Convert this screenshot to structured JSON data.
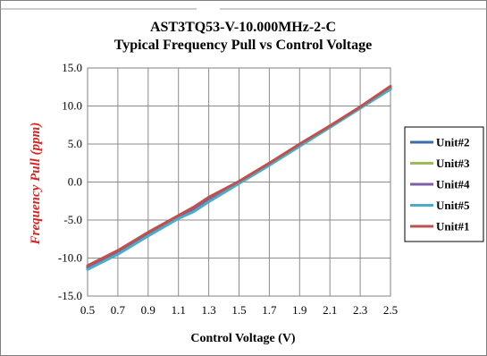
{
  "chart_data": {
    "type": "line",
    "title_line1": "AST3TQ53-V-10.000MHz-2-C",
    "title_line2": "Typical Frequency Pull vs Control Voltage",
    "xlabel": "Control Voltage (V)",
    "ylabel": "Frequency Pull (ppm)",
    "xlim": [
      0.5,
      2.5
    ],
    "ylim": [
      -15,
      15
    ],
    "x_ticks": [
      "0.5",
      "0.7",
      "0.9",
      "1.1",
      "1.3",
      "1.5",
      "1.7",
      "1.9",
      "2.1",
      "2.3",
      "2.5"
    ],
    "y_ticks": [
      "15.0",
      "10.0",
      "5.0",
      "0.0",
      "-5.0",
      "-10.0",
      "-15.0"
    ],
    "grid": true,
    "legend_position": "right",
    "series": [
      {
        "name": "Unit#2",
        "color": "#3a6ea5",
        "x": [
          0.5,
          0.7,
          0.9,
          1.1,
          1.2,
          1.3,
          1.5,
          1.7,
          1.9,
          2.1,
          2.3,
          2.5
        ],
        "y": [
          -11.3,
          -9.3,
          -7.0,
          -4.7,
          -3.8,
          -2.3,
          -0.1,
          2.3,
          4.8,
          7.2,
          9.7,
          12.3
        ]
      },
      {
        "name": "Unit#3",
        "color": "#9bbb59",
        "x": [
          0.5,
          0.7,
          0.9,
          1.1,
          1.2,
          1.3,
          1.5,
          1.7,
          1.9,
          2.1,
          2.3,
          2.5
        ],
        "y": [
          -11.2,
          -9.2,
          -6.9,
          -4.6,
          -3.6,
          -2.2,
          0.0,
          2.4,
          4.9,
          7.3,
          9.8,
          12.5
        ]
      },
      {
        "name": "Unit#4",
        "color": "#7f5fa8",
        "x": [
          0.5,
          0.7,
          0.9,
          1.1,
          1.2,
          1.3,
          1.5,
          1.7,
          1.9,
          2.1,
          2.3,
          2.5
        ],
        "y": [
          -11.2,
          -9.2,
          -6.9,
          -4.6,
          -3.6,
          -2.2,
          0.0,
          2.4,
          4.9,
          7.3,
          9.8,
          12.4
        ]
      },
      {
        "name": "Unit#5",
        "color": "#4bacc6",
        "x": [
          0.5,
          0.7,
          0.9,
          1.1,
          1.2,
          1.3,
          1.5,
          1.7,
          1.9,
          2.1,
          2.3,
          2.5
        ],
        "y": [
          -11.5,
          -9.5,
          -7.1,
          -4.8,
          -3.9,
          -2.6,
          -0.2,
          2.2,
          4.7,
          7.2,
          9.7,
          12.2
        ]
      },
      {
        "name": "Unit#1",
        "color": "#c0504d",
        "x": [
          0.5,
          0.7,
          0.9,
          1.1,
          1.2,
          1.3,
          1.5,
          1.7,
          1.9,
          2.1,
          2.3,
          2.5
        ],
        "y": [
          -11.0,
          -9.0,
          -6.6,
          -4.4,
          -3.3,
          -2.0,
          0.1,
          2.5,
          5.0,
          7.4,
          9.9,
          12.6
        ]
      }
    ]
  },
  "colors": {
    "grid": "#8c8c8c",
    "plot_border": "#808080",
    "legend_border": "#000000",
    "frame_border": "#7f7f7f",
    "ylabel": "#e02020"
  }
}
